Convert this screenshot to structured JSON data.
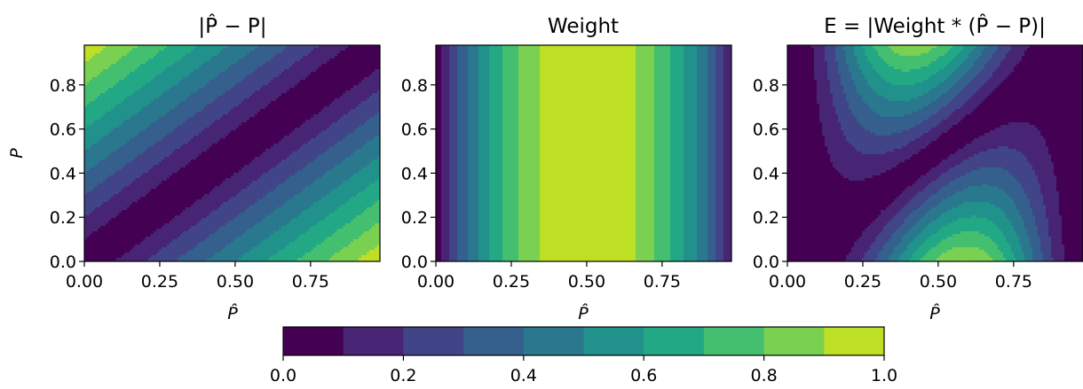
{
  "colormap": {
    "name": "viridis",
    "levels": [
      0.0,
      0.1,
      0.2,
      0.3,
      0.4,
      0.5,
      0.6,
      0.7,
      0.8,
      0.9,
      1.0
    ],
    "colors": [
      "#440154",
      "#482475",
      "#414487",
      "#355f8d",
      "#2a788e",
      "#21918c",
      "#22a884",
      "#44bf70",
      "#7ad151",
      "#bddf26",
      "#e4e21b"
    ],
    "tick_labels": [
      "0.0",
      "0.2",
      "0.4",
      "0.6",
      "0.8",
      "1.0"
    ]
  },
  "chart_data": [
    {
      "type": "heatmap",
      "subtype": "filled-contour",
      "title": "|P̂ − P|",
      "function": "abs_diff",
      "xlabel": "P̂",
      "ylabel": "P",
      "xlim": [
        0.0,
        0.98
      ],
      "ylim": [
        0.0,
        0.98
      ],
      "x_ticks": [
        "0.00",
        "0.25",
        "0.50",
        "0.75"
      ],
      "y_ticks": [
        "0.0",
        "0.2",
        "0.4",
        "0.6",
        "0.8"
      ]
    },
    {
      "type": "heatmap",
      "subtype": "filled-contour",
      "title": "Weight",
      "function": "weight",
      "xlabel": "P̂",
      "ylabel": "",
      "xlim": [
        0.0,
        0.98
      ],
      "ylim": [
        0.0,
        0.98
      ],
      "x_ticks": [
        "0.00",
        "0.25",
        "0.50",
        "0.75"
      ],
      "y_ticks": [
        "0.0",
        "0.2",
        "0.4",
        "0.6",
        "0.8"
      ]
    },
    {
      "type": "heatmap",
      "subtype": "filled-contour",
      "title": "E = |Weight * (P̂ − P)|",
      "function": "weighted_error",
      "xlabel": "P̂",
      "ylabel": "",
      "xlim": [
        0.0,
        0.98
      ],
      "ylim": [
        0.0,
        0.98
      ],
      "x_ticks": [
        "0.00",
        "0.25",
        "0.50",
        "0.75"
      ],
      "y_ticks": [
        "0.0",
        "0.2",
        "0.4",
        "0.6",
        "0.8"
      ]
    }
  ]
}
